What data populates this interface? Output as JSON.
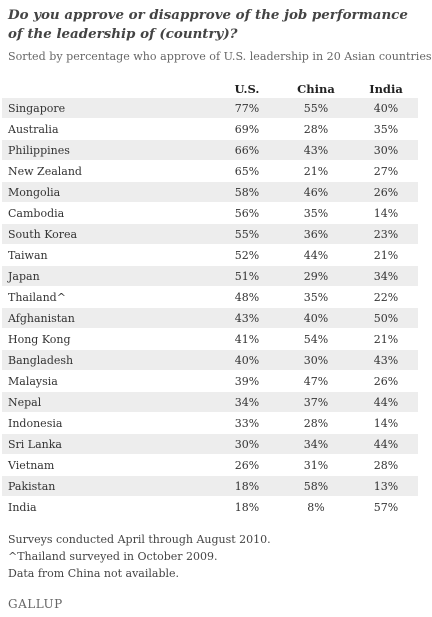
{
  "title": "Do you approve or disapprove of the job performance of the leadership of (country)?",
  "subtitle": "Sorted by percentage who approve of U.S. leadership in 20 Asian countries",
  "table": {
    "headers": [
      "",
      "U.S.",
      "China",
      "India"
    ],
    "rows": [
      {
        "country": "Singapore",
        "us": "77%",
        "china": "55%",
        "india": "40%"
      },
      {
        "country": "Australia",
        "us": "69%",
        "china": "28%",
        "india": "35%"
      },
      {
        "country": "Philippines",
        "us": "66%",
        "china": "43%",
        "india": "30%"
      },
      {
        "country": "New Zealand",
        "us": "65%",
        "china": "21%",
        "india": "27%"
      },
      {
        "country": "Mongolia",
        "us": "58%",
        "china": "46%",
        "india": "26%"
      },
      {
        "country": "Cambodia",
        "us": "56%",
        "china": "35%",
        "india": "14%"
      },
      {
        "country": "South Korea",
        "us": "55%",
        "china": "36%",
        "india": "23%"
      },
      {
        "country": "Taiwan",
        "us": "52%",
        "china": "44%",
        "india": "21%"
      },
      {
        "country": "Japan",
        "us": "51%",
        "china": "29%",
        "india": "34%"
      },
      {
        "country": "Thailand^",
        "us": "48%",
        "china": "35%",
        "india": "22%"
      },
      {
        "country": "Afghanistan",
        "us": "43%",
        "china": "40%",
        "india": "50%"
      },
      {
        "country": "Hong Kong",
        "us": "41%",
        "china": "54%",
        "india": "21%"
      },
      {
        "country": "Bangladesh",
        "us": "40%",
        "china": "30%",
        "india": "43%"
      },
      {
        "country": "Malaysia",
        "us": "39%",
        "china": "47%",
        "india": "26%"
      },
      {
        "country": "Nepal",
        "us": "34%",
        "china": "37%",
        "india": "44%"
      },
      {
        "country": "Indonesia",
        "us": "33%",
        "china": "28%",
        "india": "14%"
      },
      {
        "country": "Sri Lanka",
        "us": "30%",
        "china": "34%",
        "india": "44%"
      },
      {
        "country": "Vietnam",
        "us": "26%",
        "china": "31%",
        "india": "28%"
      },
      {
        "country": "Pakistan",
        "us": "18%",
        "china": "58%",
        "india": "13%"
      },
      {
        "country": "India",
        "us": "18%",
        "china": "8%",
        "india": "57%"
      }
    ]
  },
  "notes": [
    "Surveys conducted April through August 2010.",
    "^Thailand surveyed in October 2009.",
    "Data from China not available."
  ],
  "logo": "GALLUP",
  "colors": {
    "stripe": "#ededed",
    "text": "#333333"
  }
}
